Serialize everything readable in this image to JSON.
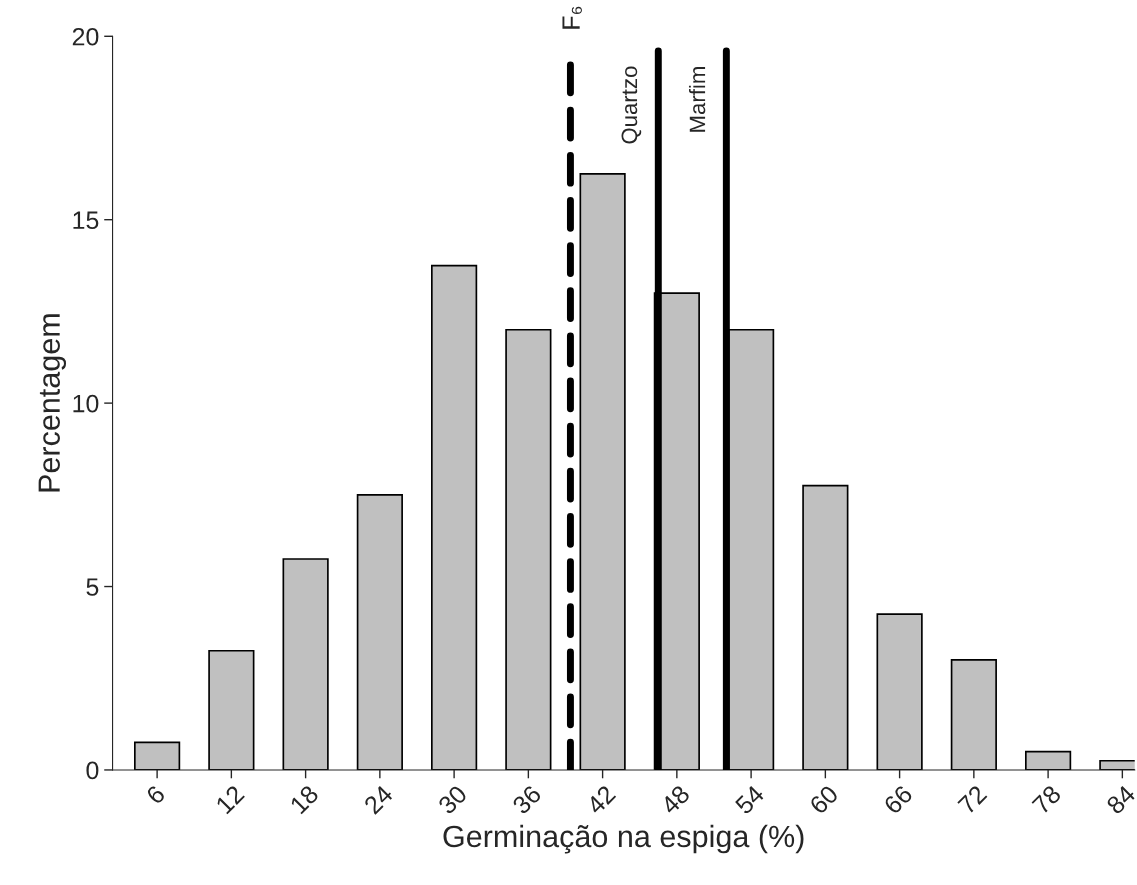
{
  "chart_data": {
    "type": "bar",
    "xlabel": "Germinação na espiga (%)",
    "ylabel": "Percentagem",
    "x": [
      6,
      12,
      18,
      24,
      30,
      36,
      42,
      48,
      54,
      60,
      66,
      72,
      78,
      84
    ],
    "values": [
      0.75,
      3.25,
      5.75,
      7.5,
      13.75,
      12,
      16.25,
      13,
      12,
      7.75,
      4.25,
      3,
      0.5,
      0.25
    ],
    "color": "#c0c0c0",
    "xlim": [
      2.4,
      85
    ],
    "xticks": [
      6,
      12,
      18,
      24,
      30,
      36,
      42,
      48,
      54,
      60,
      66,
      72,
      78,
      84
    ],
    "ylim": [
      0,
      20
    ],
    "yticks": [
      0,
      5,
      10,
      15,
      20
    ],
    "grid": false,
    "ref_lines": [
      {
        "axis": "x",
        "value": 39.4,
        "label": "F₆",
        "line_style": "dashed",
        "color": "#000000"
      },
      {
        "axis": "x",
        "value": 46.5,
        "label": "Quartzo",
        "line_style": "solid",
        "color": "#000000"
      },
      {
        "axis": "x",
        "value": 52,
        "label": "Marfim",
        "line_style": "solid",
        "color": "#000000"
      }
    ]
  }
}
